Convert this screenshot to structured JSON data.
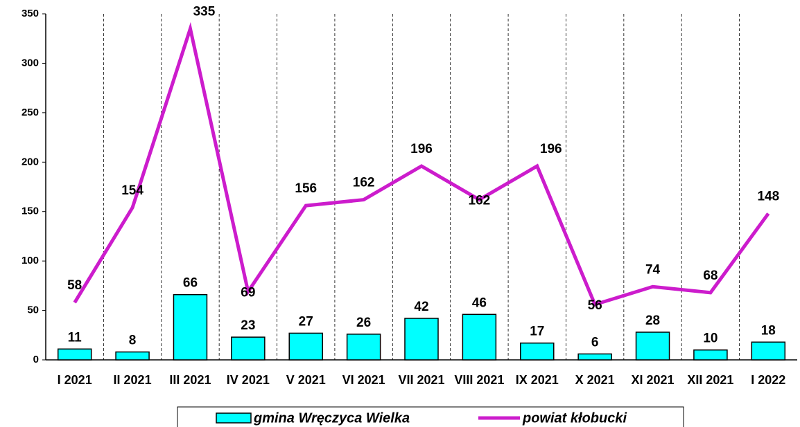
{
  "chart_data": {
    "type": "bar-line",
    "categories": [
      "I 2021",
      "II 2021",
      "III 2021",
      "IV 2021",
      "V 2021",
      "VI 2021",
      "VII 2021",
      "VIII 2021",
      "IX 2021",
      "X 2021",
      "XI 2021",
      "XII 2021",
      "I 2022"
    ],
    "series": [
      {
        "name": "gmina Wręczyca Wielka",
        "type": "bar",
        "color": "#00ffff",
        "values": [
          11,
          8,
          66,
          23,
          27,
          26,
          42,
          46,
          17,
          6,
          28,
          10,
          18
        ]
      },
      {
        "name": "powiat kłobucki",
        "type": "line",
        "color": "#cc1ccc",
        "values": [
          58,
          154,
          335,
          69,
          156,
          162,
          196,
          162,
          196,
          56,
          74,
          68,
          148
        ]
      }
    ],
    "ylim": [
      0,
      350
    ],
    "yticks": [
      0,
      50,
      100,
      150,
      200,
      250,
      300,
      350
    ]
  }
}
